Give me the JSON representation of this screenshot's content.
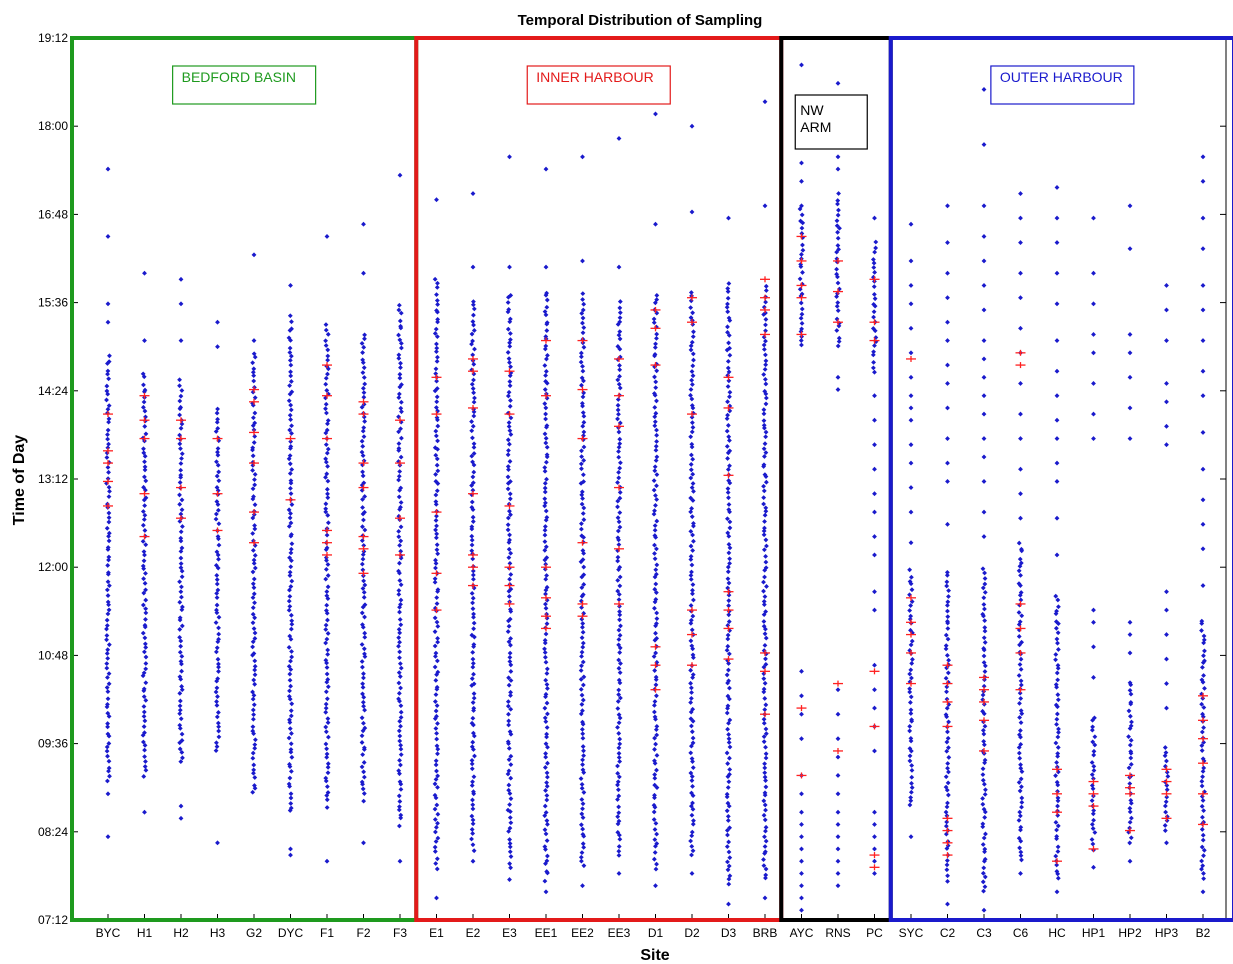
{
  "chart_data": {
    "type": "scatter",
    "title": "Temporal Distribution of Sampling",
    "xlabel": "Site",
    "ylabel": "Time of Day",
    "ylim_minutes": [
      432,
      1152
    ],
    "yticks": [
      "07:12",
      "08:24",
      "09:36",
      "10:48",
      "12:00",
      "13:12",
      "14:24",
      "15:36",
      "16:48",
      "18:00",
      "19:12"
    ],
    "categories": [
      "BYC",
      "H1",
      "H2",
      "H3",
      "G2",
      "DYC",
      "F1",
      "F2",
      "F3",
      "E1",
      "E2",
      "E3",
      "EE1",
      "EE2",
      "EE3",
      "D1",
      "D2",
      "D3",
      "BRB",
      "AYC",
      "RNS",
      "PC",
      "SYC",
      "C2",
      "C3",
      "C6",
      "HC",
      "HP1",
      "HP2",
      "HP3",
      "B2"
    ],
    "sample_color": "#1a1acc",
    "highlight_color": "#ff2020",
    "regions": [
      {
        "label": "BEDFORD BASIN",
        "start": 0,
        "end": 8,
        "color": "#1e9a1e"
      },
      {
        "label": "INNER HARBOUR",
        "start": 9,
        "end": 18,
        "color": "#e31a1a"
      },
      {
        "label": "NW ARM",
        "start": 19,
        "end": 21,
        "color": "#000000"
      },
      {
        "label": "OUTER HARBOUR",
        "start": 22,
        "end": 30,
        "color": "#1a1acc"
      }
    ],
    "series": [
      {
        "name": "BYC",
        "dense_range": [
          "09:05",
          "14:55"
        ],
        "outliers": [
          "08:20",
          "08:55",
          "15:20",
          "15:35",
          "16:30",
          "17:25"
        ],
        "highlights": [
          "12:50",
          "13:10",
          "13:25",
          "13:35",
          "14:05"
        ]
      },
      {
        "name": "H1",
        "dense_range": [
          "09:10",
          "14:40"
        ],
        "outliers": [
          "08:40",
          "15:05",
          "16:00"
        ],
        "highlights": [
          "12:25",
          "13:00",
          "13:45",
          "14:00",
          "14:20"
        ]
      },
      {
        "name": "H2",
        "dense_range": [
          "09:20",
          "14:35"
        ],
        "outliers": [
          "08:35",
          "08:45",
          "15:05",
          "15:35",
          "15:55"
        ],
        "highlights": [
          "12:40",
          "13:05",
          "13:45",
          "14:00"
        ]
      },
      {
        "name": "H3",
        "dense_range": [
          "09:30",
          "14:10"
        ],
        "outliers": [
          "08:15",
          "15:00",
          "15:20"
        ],
        "highlights": [
          "12:30",
          "13:00",
          "13:45"
        ]
      },
      {
        "name": "G2",
        "dense_range": [
          "08:55",
          "14:55"
        ],
        "outliers": [
          "15:05",
          "16:15"
        ],
        "highlights": [
          "12:20",
          "12:45",
          "13:25",
          "13:50",
          "14:15",
          "14:25"
        ]
      },
      {
        "name": "DYC",
        "dense_range": [
          "08:40",
          "15:25"
        ],
        "outliers": [
          "08:10",
          "08:05",
          "15:50"
        ],
        "highlights": [
          "12:55",
          "13:45"
        ]
      },
      {
        "name": "F1",
        "dense_range": [
          "08:45",
          "15:20"
        ],
        "outliers": [
          "08:00",
          "16:30"
        ],
        "highlights": [
          "12:10",
          "12:20",
          "12:30",
          "13:45",
          "14:20",
          "14:45"
        ]
      },
      {
        "name": "F2",
        "dense_range": [
          "08:50",
          "15:10"
        ],
        "outliers": [
          "08:15",
          "16:00",
          "16:40"
        ],
        "highlights": [
          "11:55",
          "12:15",
          "12:25",
          "13:05",
          "13:25",
          "14:05",
          "14:15"
        ]
      },
      {
        "name": "F3",
        "dense_range": [
          "08:30",
          "15:35"
        ],
        "outliers": [
          "08:00",
          "17:20"
        ],
        "highlights": [
          "12:10",
          "12:40",
          "13:25",
          "14:00"
        ]
      },
      {
        "name": "E1",
        "dense_range": [
          "07:55",
          "15:55"
        ],
        "outliers": [
          "07:30",
          "17:00"
        ],
        "highlights": [
          "11:25",
          "11:55",
          "12:45",
          "14:05",
          "14:35"
        ]
      },
      {
        "name": "E2",
        "dense_range": [
          "08:10",
          "15:40"
        ],
        "outliers": [
          "08:00",
          "16:05",
          "17:05"
        ],
        "highlights": [
          "11:45",
          "12:00",
          "12:10",
          "13:00",
          "14:10",
          "14:40",
          "14:50"
        ]
      },
      {
        "name": "E3",
        "dense_range": [
          "07:55",
          "15:45"
        ],
        "outliers": [
          "07:45",
          "16:05",
          "17:35"
        ],
        "highlights": [
          "11:30",
          "11:45",
          "12:00",
          "12:50",
          "14:05",
          "14:40"
        ]
      },
      {
        "name": "EE1",
        "dense_range": [
          "07:45",
          "15:45"
        ],
        "outliers": [
          "07:35",
          "16:05",
          "17:25"
        ],
        "highlights": [
          "11:10",
          "11:20",
          "11:35",
          "12:00",
          "14:20",
          "15:05"
        ]
      },
      {
        "name": "EE2",
        "dense_range": [
          "07:55",
          "15:45"
        ],
        "outliers": [
          "07:40",
          "16:10",
          "17:35"
        ],
        "highlights": [
          "11:20",
          "11:30",
          "12:20",
          "13:45",
          "14:25",
          "15:05"
        ]
      },
      {
        "name": "EE3",
        "dense_range": [
          "08:05",
          "15:40"
        ],
        "outliers": [
          "07:50",
          "16:05",
          "17:50"
        ],
        "highlights": [
          "11:30",
          "12:15",
          "13:05",
          "13:55",
          "14:20",
          "14:50"
        ]
      },
      {
        "name": "D1",
        "dense_range": [
          "07:55",
          "15:45"
        ],
        "outliers": [
          "07:40",
          "16:40",
          "18:10"
        ],
        "highlights": [
          "10:20",
          "10:40",
          "10:55",
          "14:45",
          "15:15",
          "15:30"
        ]
      },
      {
        "name": "D2",
        "dense_range": [
          "08:05",
          "15:45"
        ],
        "outliers": [
          "07:50",
          "16:50",
          "18:00"
        ],
        "highlights": [
          "10:40",
          "11:05",
          "11:25",
          "14:05",
          "15:20",
          "15:40"
        ]
      },
      {
        "name": "D3",
        "dense_range": [
          "07:40",
          "15:55"
        ],
        "outliers": [
          "07:25",
          "16:45"
        ],
        "highlights": [
          "10:45",
          "11:10",
          "11:25",
          "11:40",
          "13:15",
          "14:10",
          "14:35"
        ]
      },
      {
        "name": "BRB",
        "dense_range": [
          "07:45",
          "15:50"
        ],
        "outliers": [
          "07:30",
          "16:55",
          "18:20"
        ],
        "highlights": [
          "10:00",
          "10:35",
          "10:50",
          "15:10",
          "15:30",
          "15:40",
          "15:55"
        ]
      },
      {
        "name": "AYC",
        "dense_range": [
          "15:00",
          "16:55"
        ],
        "outliers": [
          "07:20",
          "07:30",
          "07:40",
          "07:50",
          "08:00",
          "08:10",
          "08:20",
          "08:30",
          "08:40",
          "08:55",
          "09:10",
          "09:40",
          "10:00",
          "10:15",
          "10:35",
          "16:55",
          "17:15",
          "17:30",
          "18:50"
        ],
        "highlights": [
          "09:10",
          "10:05",
          "15:10",
          "15:40",
          "15:50",
          "16:10",
          "16:30"
        ]
      },
      {
        "name": "RNS",
        "dense_range": [
          "15:00",
          "17:05"
        ],
        "outliers": [
          "07:40",
          "07:50",
          "08:00",
          "08:10",
          "08:20",
          "08:30",
          "08:40",
          "08:55",
          "09:10",
          "09:25",
          "09:40",
          "10:00",
          "10:20",
          "14:25",
          "14:35",
          "17:25",
          "17:35",
          "18:35"
        ],
        "highlights": [
          "09:30",
          "10:25",
          "15:20",
          "15:45",
          "16:10"
        ]
      },
      {
        "name": "PC",
        "dense_range": [
          "14:40",
          "16:25"
        ],
        "outliers": [
          "07:50",
          "08:00",
          "08:10",
          "08:20",
          "08:30",
          "08:40",
          "09:30",
          "09:50",
          "10:05",
          "10:20",
          "10:40",
          "11:25",
          "11:40",
          "12:10",
          "12:25",
          "12:45",
          "13:00",
          "13:20",
          "13:40",
          "14:00",
          "14:20",
          "16:45"
        ],
        "highlights": [
          "07:55",
          "08:05",
          "09:50",
          "10:35",
          "15:05",
          "15:20",
          "15:55"
        ]
      },
      {
        "name": "SYC",
        "dense_range": [
          "08:45",
          "12:00"
        ],
        "outliers": [
          "08:20",
          "12:20",
          "12:45",
          "13:05",
          "13:25",
          "13:40",
          "14:00",
          "14:10",
          "14:20",
          "14:35",
          "14:55",
          "15:15",
          "15:35",
          "15:50",
          "16:10",
          "16:40"
        ],
        "highlights": [
          "10:25",
          "10:50",
          "11:05",
          "11:15",
          "11:35",
          "14:50"
        ]
      },
      {
        "name": "C2",
        "dense_range": [
          "07:45",
          "12:00"
        ],
        "outliers": [
          "07:25",
          "12:35",
          "13:10",
          "13:25",
          "13:45",
          "14:10",
          "14:30",
          "14:45",
          "15:05",
          "15:20",
          "15:40",
          "16:00",
          "16:25",
          "16:55"
        ],
        "highlights": [
          "08:05",
          "08:15",
          "08:25",
          "08:35",
          "09:50",
          "10:10",
          "10:25",
          "10:40"
        ]
      },
      {
        "name": "C3",
        "dense_range": [
          "07:35",
          "12:00"
        ],
        "outliers": [
          "07:20",
          "12:25",
          "12:45",
          "13:10",
          "13:30",
          "13:45",
          "14:05",
          "14:20",
          "14:35",
          "14:50",
          "15:05",
          "15:30",
          "15:50",
          "16:10",
          "16:30",
          "16:55",
          "17:45",
          "18:30"
        ],
        "highlights": [
          "09:30",
          "09:55",
          "10:10",
          "10:20",
          "10:30"
        ]
      },
      {
        "name": "C6",
        "dense_range": [
          "08:00",
          "12:20"
        ],
        "outliers": [
          "07:50",
          "12:40",
          "13:00",
          "13:20",
          "13:45",
          "14:05",
          "14:30",
          "14:55",
          "15:15",
          "15:40",
          "16:00",
          "16:25",
          "16:45",
          "17:05"
        ],
        "highlights": [
          "10:20",
          "10:50",
          "11:10",
          "11:30",
          "14:45",
          "14:55"
        ]
      },
      {
        "name": "HC",
        "dense_range": [
          "07:45",
          "11:40"
        ],
        "outliers": [
          "07:35",
          "12:10",
          "12:40",
          "13:10",
          "13:25",
          "13:45",
          "14:00",
          "14:20",
          "14:40",
          "15:05",
          "15:35",
          "16:00",
          "16:25",
          "16:45",
          "17:10"
        ],
        "highlights": [
          "08:00",
          "08:40",
          "08:55",
          "09:15"
        ]
      },
      {
        "name": "HP1",
        "dense_range": [
          "08:10",
          "10:00"
        ],
        "outliers": [
          "07:55",
          "10:30",
          "10:55",
          "11:15",
          "11:25",
          "13:45",
          "14:05",
          "14:30",
          "14:55",
          "15:10",
          "15:35",
          "16:00",
          "16:45"
        ],
        "highlights": [
          "08:10",
          "08:45",
          "08:55",
          "09:05"
        ]
      },
      {
        "name": "HP2",
        "dense_range": [
          "08:15",
          "10:30"
        ],
        "outliers": [
          "08:00",
          "10:50",
          "11:05",
          "11:15",
          "13:45",
          "14:10",
          "14:35",
          "14:55",
          "15:10",
          "16:20",
          "16:55"
        ],
        "highlights": [
          "08:25",
          "08:55",
          "09:00",
          "09:10"
        ]
      },
      {
        "name": "HP3",
        "dense_range": [
          "08:25",
          "09:35"
        ],
        "outliers": [
          "08:15",
          "10:05",
          "10:25",
          "10:45",
          "11:05",
          "11:25",
          "11:40",
          "13:40",
          "13:55",
          "14:15",
          "14:30",
          "15:05",
          "15:30",
          "15:50"
        ],
        "highlights": [
          "08:35",
          "08:55",
          "09:05",
          "09:15"
        ]
      },
      {
        "name": "B2",
        "dense_range": [
          "07:45",
          "11:20"
        ],
        "outliers": [
          "07:35",
          "11:45",
          "12:15",
          "12:35",
          "12:55",
          "13:20",
          "13:50",
          "14:20",
          "14:40",
          "15:05",
          "15:30",
          "15:50",
          "16:20",
          "16:45",
          "17:15",
          "17:35"
        ],
        "highlights": [
          "08:30",
          "08:55",
          "09:20",
          "09:40",
          "09:55",
          "10:15"
        ]
      }
    ]
  }
}
